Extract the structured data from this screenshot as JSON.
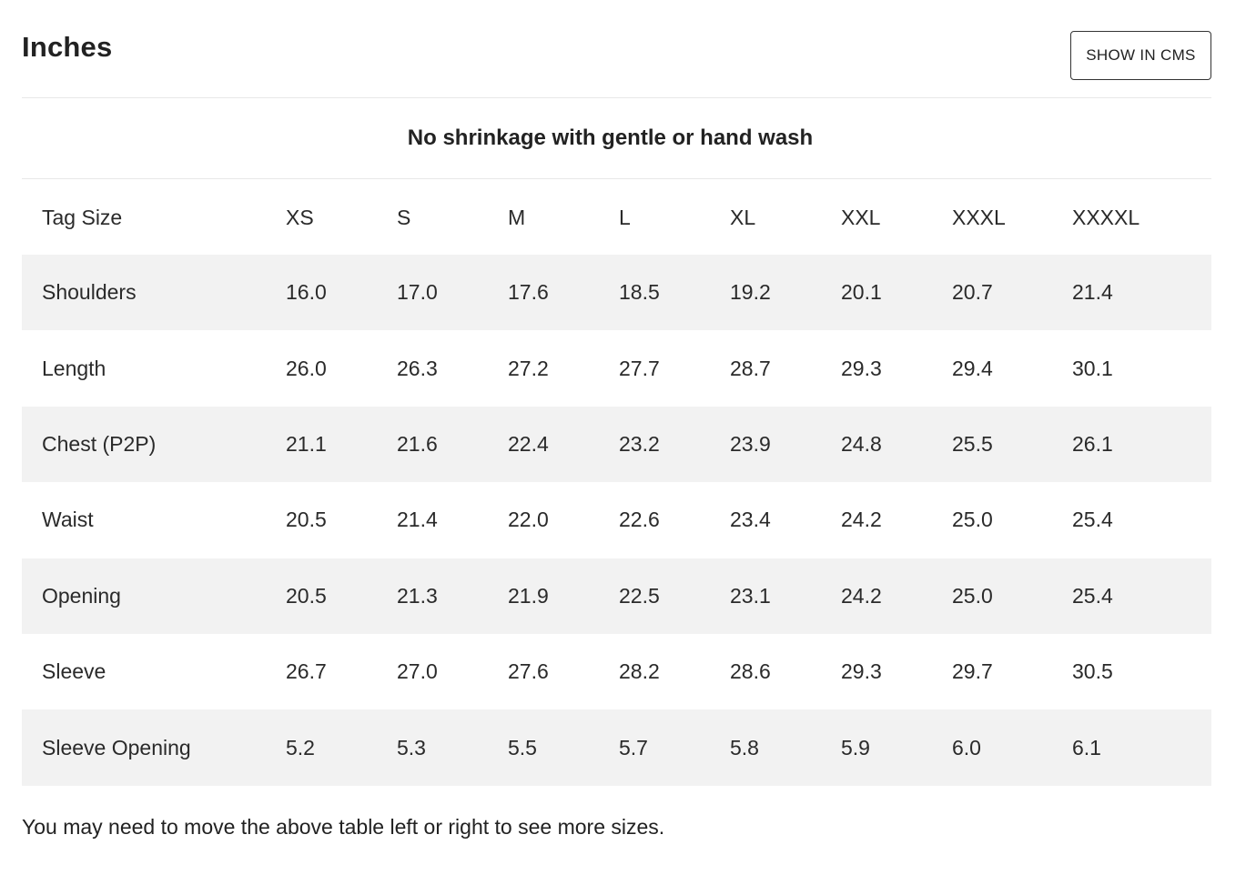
{
  "heading": "Inches",
  "cms_button_label": "SHOW IN CMS",
  "note": "No shrinkage with gentle or hand wash",
  "table": {
    "header_label": "Tag Size",
    "sizes": [
      "XS",
      "S",
      "M",
      "L",
      "XL",
      "XXL",
      "XXXL",
      "XXXXL"
    ],
    "rows": [
      {
        "label": "Shoulders",
        "values": [
          "16.0",
          "17.0",
          "17.6",
          "18.5",
          "19.2",
          "20.1",
          "20.7",
          "21.4"
        ]
      },
      {
        "label": "Length",
        "values": [
          "26.0",
          "26.3",
          "27.2",
          "27.7",
          "28.7",
          "29.3",
          "29.4",
          "30.1"
        ]
      },
      {
        "label": "Chest (P2P)",
        "values": [
          "21.1",
          "21.6",
          "22.4",
          "23.2",
          "23.9",
          "24.8",
          "25.5",
          "26.1"
        ]
      },
      {
        "label": "Waist",
        "values": [
          "20.5",
          "21.4",
          "22.0",
          "22.6",
          "23.4",
          "24.2",
          "25.0",
          "25.4"
        ]
      },
      {
        "label": "Opening",
        "values": [
          "20.5",
          "21.3",
          "21.9",
          "22.5",
          "23.1",
          "24.2",
          "25.0",
          "25.4"
        ]
      },
      {
        "label": "Sleeve",
        "values": [
          "26.7",
          "27.0",
          "27.6",
          "28.2",
          "28.6",
          "29.3",
          "29.7",
          "30.5"
        ]
      },
      {
        "label": "Sleeve Opening",
        "values": [
          "5.2",
          "5.3",
          "5.5",
          "5.7",
          "5.8",
          "5.9",
          "6.0",
          "6.1"
        ]
      }
    ]
  },
  "footer_note": "You may need to move the above table left or right to see more sizes.",
  "colors": {
    "shaded_row": "#f2f2f2",
    "text": "#222222",
    "divider": "#e8e8e8"
  }
}
